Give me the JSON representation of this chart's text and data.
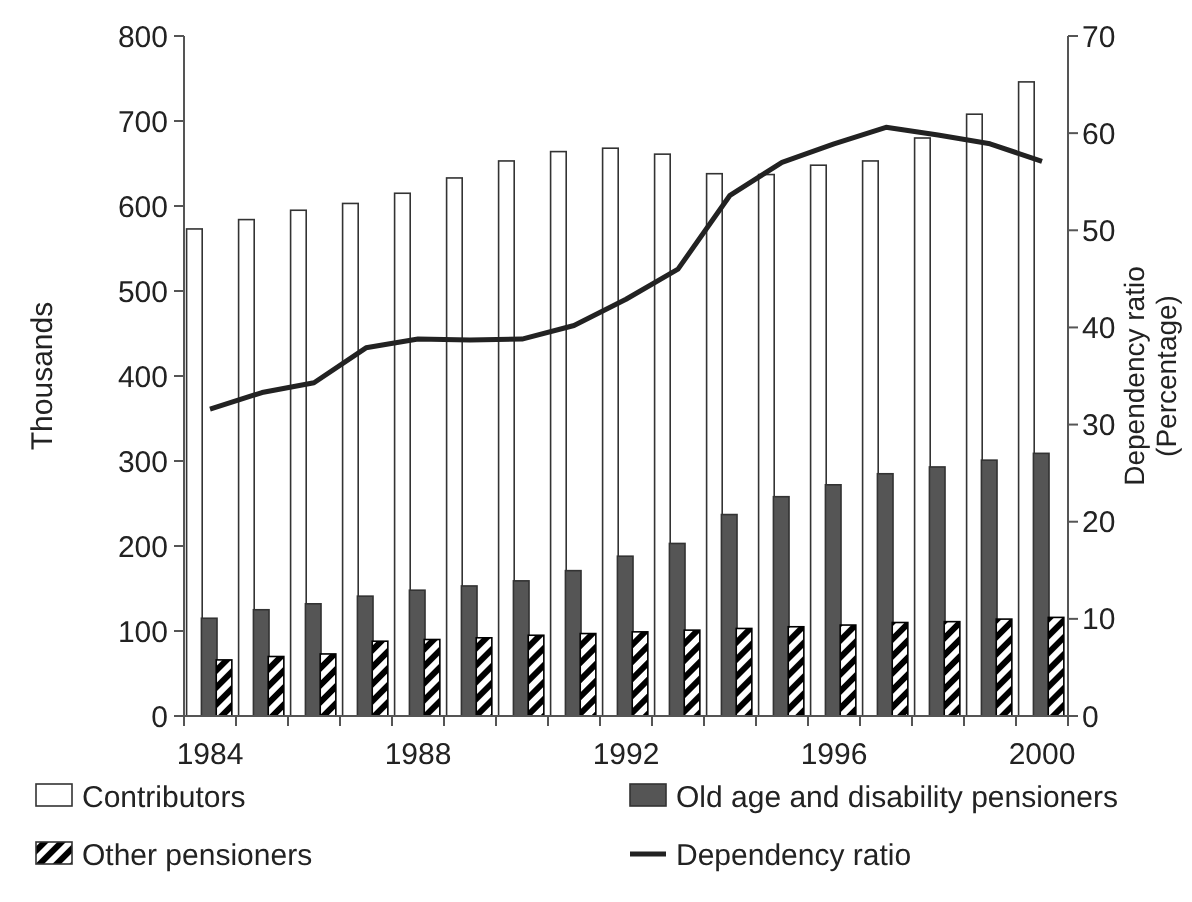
{
  "chart_data": {
    "type": "bar",
    "categories": [
      "1984",
      null,
      null,
      null,
      "1988",
      null,
      null,
      null,
      "1992",
      null,
      null,
      null,
      "1996",
      null,
      null,
      null,
      "2000"
    ],
    "ylabel": "Thousands",
    "y2label": "Dependency ratio (Percentage)",
    "ylim": [
      0,
      800
    ],
    "yticks": [
      0,
      100,
      200,
      300,
      400,
      500,
      600,
      700,
      800
    ],
    "y2lim": [
      0,
      70
    ],
    "y2ticks": [
      0,
      10,
      20,
      30,
      40,
      50,
      60,
      70
    ],
    "legend": "bottom",
    "grid": false,
    "marker": "none",
    "line_style": "solid",
    "series": [
      {
        "name": "Contributors",
        "color": "#ffffff",
        "values": [
          573,
          584,
          595,
          603,
          615,
          633,
          653,
          664,
          668,
          661,
          638,
          637,
          648,
          653,
          680,
          708,
          746
        ]
      },
      {
        "name": "Old age and disability pensioners",
        "color": "#555555",
        "values": [
          115,
          125,
          132,
          141,
          148,
          153,
          159,
          171,
          188,
          203,
          237,
          258,
          272,
          285,
          293,
          301,
          309
        ]
      },
      {
        "name": "Other pensioners",
        "color": "#000000",
        "values": [
          66,
          70,
          73,
          88,
          90,
          92,
          95,
          97,
          99,
          101,
          103,
          105,
          107,
          110,
          111,
          114,
          116
        ]
      },
      {
        "name": "Dependency ratio",
        "type": "line",
        "axis": "y2",
        "color": "#222222",
        "values": [
          31.6,
          33.3,
          34.3,
          37.9,
          38.8,
          38.7,
          38.8,
          40.2,
          42.9,
          46.0,
          53.6,
          57.0,
          58.9,
          60.6,
          59.8,
          58.9,
          57.1
        ]
      }
    ]
  }
}
